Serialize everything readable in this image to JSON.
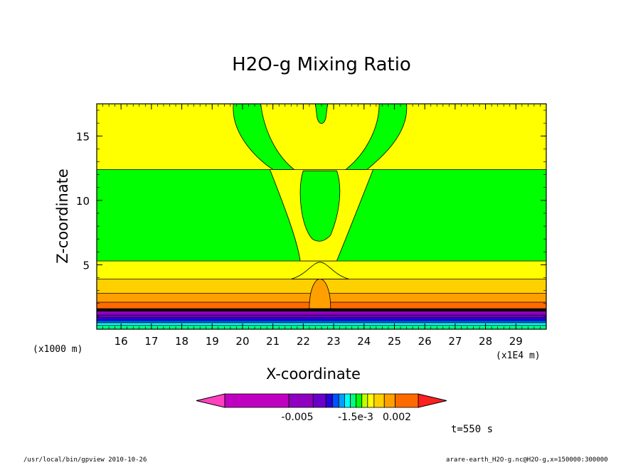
{
  "chart_data": {
    "type": "contour",
    "title": "H2O-g Mixing Ratio",
    "xlabel": "X-coordinate",
    "ylabel": "Z-coordinate",
    "x_unit": "(x1E4 m)",
    "y_unit": "(x1000 m)",
    "x_ticks": [
      "16",
      "17",
      "18",
      "19",
      "20",
      "21",
      "22",
      "23",
      "24",
      "25",
      "26",
      "27",
      "28",
      "29"
    ],
    "y_ticks": [
      "5",
      "10",
      "15"
    ],
    "xlim": [
      15.2,
      30.0
    ],
    "ylim": [
      0,
      17.5
    ],
    "time_label": "t=550 s",
    "colorbar": {
      "tick_labels": [
        "-0.005",
        "-1.5e-3",
        "0.002"
      ],
      "colors": [
        "#ff40c0",
        "#c000c0",
        "#9000c0",
        "#6a00c8",
        "#2a00d8",
        "#0050ff",
        "#00a0ff",
        "#00ffff",
        "#00ff80",
        "#00ff00",
        "#c0ff00",
        "#ffff00",
        "#ffd000",
        "#ffa000",
        "#ff6a00",
        "#ff2020"
      ]
    },
    "layers": [
      {
        "z": [
          0,
          0.3
        ],
        "color": "#00ff80"
      },
      {
        "z": [
          0.3,
          0.5
        ],
        "color": "#00ffff"
      },
      {
        "z": [
          0.5,
          0.7
        ],
        "color": "#0050ff"
      },
      {
        "z": [
          0.7,
          0.9
        ],
        "color": "#2a00d8"
      },
      {
        "z": [
          0.9,
          1.1
        ],
        "color": "#6a00c8"
      },
      {
        "z": [
          1.1,
          1.4
        ],
        "color": "#9000c0"
      },
      {
        "z": [
          1.4,
          1.6
        ],
        "color": "#000000"
      },
      {
        "z": [
          1.6,
          2.1
        ],
        "color": "#ff6a00"
      },
      {
        "z": [
          2.1,
          2.8
        ],
        "color": "#ffa000"
      },
      {
        "z": [
          2.8,
          3.9
        ],
        "color": "#ffd000"
      },
      {
        "z": [
          3.9,
          5.3
        ],
        "color": "#ffff00"
      },
      {
        "z": [
          5.3,
          12.4
        ],
        "color": "#00ff00"
      },
      {
        "z": [
          12.4,
          17.5
        ],
        "color": "#ffff00"
      }
    ]
  },
  "footer": {
    "left": "/usr/local/bin/gpview  2010-10-26",
    "right": "arare-earth_H2O-g.nc@H2O-g,x=150000:300000"
  }
}
